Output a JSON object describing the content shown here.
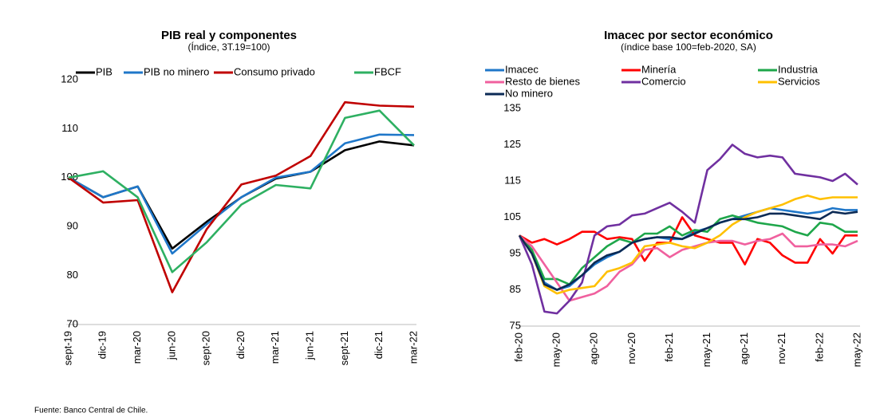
{
  "chart_data": [
    {
      "type": "line",
      "title": "PIB real y componentes",
      "subtitle": "(Índice, 3T.19=100)",
      "categories": [
        "sept-19",
        "dic-19",
        "mar-20",
        "jun-20",
        "sept-20",
        "dic-20",
        "mar-21",
        "jun-21",
        "sept-21",
        "dic-21",
        "mar-22"
      ],
      "ylim": [
        70,
        120
      ],
      "yticks": [
        70,
        80,
        90,
        100,
        110,
        120
      ],
      "series": [
        {
          "name": "PIB",
          "color": "#000000",
          "values": [
            100,
            96,
            98.2,
            85.5,
            91,
            96,
            99.8,
            101.2,
            105.6,
            107.4,
            106.6
          ]
        },
        {
          "name": "PIB no minero",
          "color": "#1f77c9",
          "values": [
            100,
            96,
            98.2,
            84.5,
            90.5,
            96,
            100,
            101.2,
            107,
            108.8,
            108.7
          ]
        },
        {
          "name": "Consumo privado",
          "color": "#c00000",
          "values": [
            100,
            94.9,
            95.4,
            76.6,
            89.5,
            98.6,
            100.4,
            104.4,
            115.4,
            114.7,
            114.5
          ]
        },
        {
          "name": "FBCF",
          "color": "#2eb062",
          "values": [
            100,
            101.3,
            96,
            80.7,
            86.8,
            94.5,
            98.5,
            97.8,
            112.2,
            113.7,
            106.6
          ]
        }
      ]
    },
    {
      "type": "line",
      "title": "Imacec por sector económico",
      "subtitle": "(índice base 100=feb-2020, SA)",
      "categories": [
        "feb-20",
        null,
        null,
        "may-20",
        null,
        null,
        "ago-20",
        null,
        null,
        "nov-20",
        null,
        null,
        "feb-21",
        null,
        null,
        "may-21",
        null,
        null,
        "ago-21",
        null,
        null,
        "nov-21",
        null,
        null,
        "feb-22",
        null,
        null,
        "may-22"
      ],
      "ylim": [
        75,
        135
      ],
      "yticks": [
        75,
        85,
        95,
        105,
        115,
        125,
        135
      ],
      "series": [
        {
          "name": "Imacec",
          "color": "#1f77c9",
          "values": [
            100,
            95,
            87,
            85,
            86,
            89,
            92,
            94,
            95.5,
            98,
            99,
            99.5,
            99,
            99,
            101,
            102,
            103.5,
            104.5,
            105.5,
            106.5,
            107.5,
            107,
            106.5,
            106,
            106.5,
            107.5,
            107,
            107
          ]
        },
        {
          "name": "Minería",
          "color": "#ff0000",
          "values": [
            100,
            98,
            99,
            97.5,
            99,
            101,
            101,
            99,
            99.5,
            99,
            93,
            98,
            98,
            105,
            100,
            99,
            98,
            98,
            92,
            99,
            98,
            94.5,
            92.5,
            92.5,
            99,
            95,
            100,
            100
          ]
        },
        {
          "name": "Industria",
          "color": "#1ea64a",
          "values": [
            100,
            96,
            88,
            88,
            86.5,
            91,
            94,
            97,
            99,
            98,
            100.5,
            100.5,
            102.5,
            100,
            101.5,
            101,
            104.5,
            105.5,
            104.5,
            103.5,
            103,
            102.5,
            101,
            100,
            103.5,
            103,
            101,
            101
          ]
        },
        {
          "name": "Resto de bienes",
          "color": "#f0609e",
          "values": [
            100,
            97,
            92,
            87,
            82,
            83,
            84,
            86,
            90,
            92,
            96,
            96.5,
            94,
            96,
            97,
            98,
            98.5,
            98.5,
            97.5,
            98.5,
            99,
            100.5,
            97,
            97,
            97.5,
            97.5,
            97,
            98.5
          ]
        },
        {
          "name": "Comercio",
          "color": "#7030a0",
          "values": [
            100,
            92,
            79,
            78.5,
            82,
            87,
            100,
            102.5,
            103,
            105.5,
            106,
            107.5,
            109,
            106.5,
            103.5,
            118,
            121,
            125,
            122.5,
            121.5,
            122,
            121.5,
            117,
            116.5,
            116,
            115,
            117,
            114
          ]
        },
        {
          "name": "Servicios",
          "color": "#ffc000",
          "values": [
            100,
            95,
            86,
            84,
            85,
            85.5,
            86,
            90,
            91,
            92.5,
            97,
            97.5,
            98,
            97,
            96.5,
            98,
            100,
            103,
            105,
            106.5,
            107.5,
            108.5,
            110,
            111,
            110,
            110.5,
            110.5,
            110.5
          ]
        },
        {
          "name": "No minero",
          "color": "#0b2a55",
          "values": [
            100,
            95,
            86.5,
            85,
            86.5,
            89,
            92.5,
            94.5,
            95.5,
            98,
            99,
            99.5,
            99.5,
            99,
            100.5,
            102,
            103.5,
            104.5,
            104.5,
            105,
            106,
            106,
            105.5,
            105,
            104.5,
            106.5,
            106,
            106.5
          ]
        }
      ]
    }
  ],
  "source": "Fuente: Banco Central de Chile."
}
